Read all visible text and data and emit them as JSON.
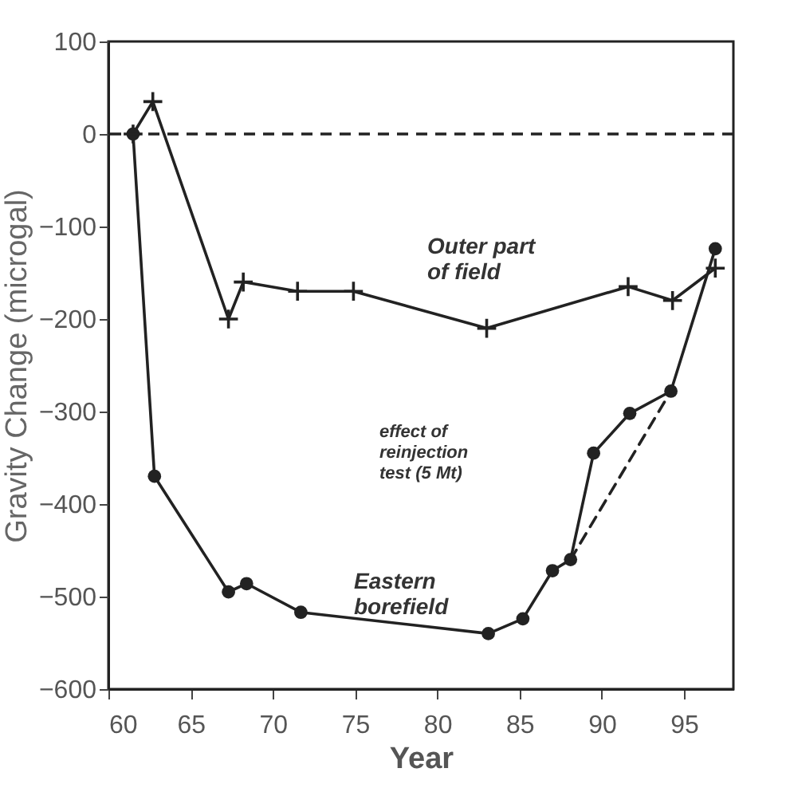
{
  "chart_data": {
    "type": "line",
    "xlabel": "Year",
    "ylabel": "Gravity Change (microgal)",
    "xlim": [
      60,
      98
    ],
    "xticks": [
      60,
      65,
      70,
      75,
      80,
      85,
      90,
      95
    ],
    "ylim": [
      -600,
      100
    ],
    "yticks": [
      -600,
      -500,
      -400,
      -300,
      -200,
      -100,
      0,
      100
    ],
    "grid": false,
    "series": [
      {
        "color": "#222222",
        "marker": "cross",
        "x": [
          61.5,
          62.7,
          67.3,
          68.2,
          71.5,
          74.9,
          83.0,
          91.6,
          94.3,
          96.9
        ],
        "values": [
          0,
          35,
          -200,
          -160,
          -170,
          -170,
          -210,
          -165,
          -180,
          -145
        ]
      },
      {
        "color": "#222222",
        "marker": "circle",
        "x": [
          61.5,
          62.8,
          67.3,
          68.4,
          71.7,
          83.1,
          85.2,
          87.0,
          88.1,
          89.5,
          91.7,
          94.2,
          96.9
        ],
        "values": [
          0,
          -370,
          -495,
          -486,
          -517,
          -540,
          -524,
          -472,
          -460,
          -345,
          -302,
          -278,
          -124
        ]
      },
      {
        "color": "#222222",
        "marker": "none",
        "line_style": "dashed",
        "x": [
          88.1,
          94.2
        ],
        "values": [
          -460,
          -278
        ]
      }
    ],
    "ref_lines": [
      {
        "axis": "y",
        "value": 0,
        "line_style": "dashed",
        "color": "#222222"
      }
    ],
    "annotations": [
      "Outer part\nof field",
      "Eastern\nborefield",
      "effect of\nreinjection\ntest (5 Mt)"
    ]
  }
}
